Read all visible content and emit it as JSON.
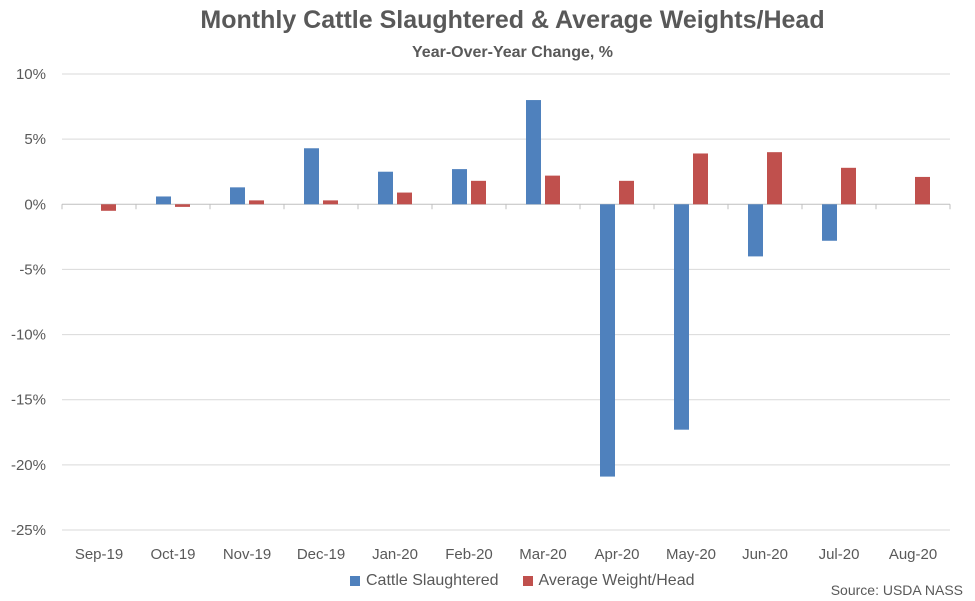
{
  "chart_data": {
    "type": "bar",
    "title": "Monthly Cattle Slaughtered & Average Weights/Head",
    "subtitle": "Year-Over-Year Change, %",
    "categories": [
      "Sep-19",
      "Oct-19",
      "Nov-19",
      "Dec-19",
      "Jan-20",
      "Feb-20",
      "Mar-20",
      "Apr-20",
      "May-20",
      "Jun-20",
      "Jul-20",
      "Aug-20"
    ],
    "series": [
      {
        "name": "Cattle Slaughtered",
        "color": "#4f81bd",
        "values": [
          0.0,
          0.6,
          1.3,
          4.3,
          2.5,
          2.7,
          8.0,
          -20.9,
          -17.3,
          -4.0,
          -2.8,
          0.0
        ]
      },
      {
        "name": "Average Weight/Head",
        "color": "#c0504d",
        "values": [
          -0.5,
          -0.2,
          0.3,
          0.3,
          0.9,
          1.8,
          2.2,
          1.8,
          3.9,
          4.0,
          2.8,
          2.1
        ]
      }
    ],
    "ylim": [
      -25,
      10
    ],
    "yticks": [
      10,
      5,
      0,
      -5,
      -10,
      -15,
      -20,
      -25
    ],
    "ytick_labels": [
      "10%",
      "5%",
      "0%",
      "-5%",
      "-10%",
      "-15%",
      "-20%",
      "-25%"
    ],
    "grid": true,
    "legend_position": "bottom",
    "source": "Source: USDA NASS"
  }
}
